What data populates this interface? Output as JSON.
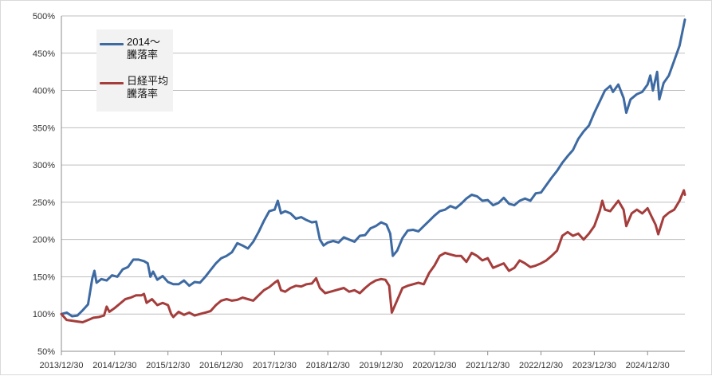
{
  "chart_data": {
    "type": "line",
    "title": "",
    "xlabel": "",
    "ylabel": "",
    "ylim": [
      50,
      500
    ],
    "y_ticks": [
      "50%",
      "100%",
      "150%",
      "200%",
      "250%",
      "300%",
      "350%",
      "400%",
      "450%",
      "500%"
    ],
    "x_ticks": [
      "2013/12/30",
      "2014/12/30",
      "2015/12/30",
      "2016/12/30",
      "2017/12/30",
      "2018/12/30",
      "2019/12/30",
      "2020/12/30",
      "2021/12/30",
      "2022/12/30",
      "2023/12/30",
      "2024/12/30"
    ],
    "x_range": [
      2014.0,
      2025.7
    ],
    "grid": "horizontal",
    "legend_position": "top-left",
    "series": [
      {
        "name": "2014～\n騰落率",
        "color": "#3d6aa2",
        "points": [
          [
            2014.0,
            100
          ],
          [
            2014.1,
            102
          ],
          [
            2014.2,
            97
          ],
          [
            2014.3,
            98
          ],
          [
            2014.4,
            105
          ],
          [
            2014.5,
            113
          ],
          [
            2014.58,
            148
          ],
          [
            2014.62,
            158
          ],
          [
            2014.66,
            142
          ],
          [
            2014.75,
            147
          ],
          [
            2014.85,
            145
          ],
          [
            2014.95,
            152
          ],
          [
            2015.05,
            150
          ],
          [
            2015.15,
            160
          ],
          [
            2015.25,
            163
          ],
          [
            2015.35,
            173
          ],
          [
            2015.45,
            173
          ],
          [
            2015.55,
            171
          ],
          [
            2015.62,
            168
          ],
          [
            2015.67,
            150
          ],
          [
            2015.72,
            157
          ],
          [
            2015.8,
            146
          ],
          [
            2015.9,
            151
          ],
          [
            2016.0,
            143
          ],
          [
            2016.1,
            140
          ],
          [
            2016.2,
            140
          ],
          [
            2016.3,
            145
          ],
          [
            2016.4,
            138
          ],
          [
            2016.5,
            143
          ],
          [
            2016.6,
            142
          ],
          [
            2016.7,
            150
          ],
          [
            2016.8,
            159
          ],
          [
            2016.9,
            168
          ],
          [
            2017.0,
            175
          ],
          [
            2017.1,
            178
          ],
          [
            2017.2,
            183
          ],
          [
            2017.3,
            195
          ],
          [
            2017.4,
            192
          ],
          [
            2017.5,
            188
          ],
          [
            2017.6,
            197
          ],
          [
            2017.7,
            210
          ],
          [
            2017.8,
            225
          ],
          [
            2017.9,
            238
          ],
          [
            2018.0,
            240
          ],
          [
            2018.06,
            252
          ],
          [
            2018.12,
            235
          ],
          [
            2018.2,
            238
          ],
          [
            2018.3,
            235
          ],
          [
            2018.4,
            228
          ],
          [
            2018.5,
            230
          ],
          [
            2018.6,
            226
          ],
          [
            2018.7,
            223
          ],
          [
            2018.78,
            224
          ],
          [
            2018.85,
            200
          ],
          [
            2018.92,
            192
          ],
          [
            2019.0,
            196
          ],
          [
            2019.1,
            198
          ],
          [
            2019.2,
            196
          ],
          [
            2019.3,
            203
          ],
          [
            2019.4,
            200
          ],
          [
            2019.5,
            197
          ],
          [
            2019.6,
            205
          ],
          [
            2019.7,
            206
          ],
          [
            2019.8,
            215
          ],
          [
            2019.9,
            218
          ],
          [
            2020.0,
            223
          ],
          [
            2020.1,
            220
          ],
          [
            2020.17,
            208
          ],
          [
            2020.22,
            178
          ],
          [
            2020.3,
            185
          ],
          [
            2020.4,
            202
          ],
          [
            2020.5,
            212
          ],
          [
            2020.6,
            213
          ],
          [
            2020.7,
            211
          ],
          [
            2020.8,
            218
          ],
          [
            2020.9,
            225
          ],
          [
            2021.0,
            232
          ],
          [
            2021.1,
            238
          ],
          [
            2021.2,
            240
          ],
          [
            2021.3,
            245
          ],
          [
            2021.4,
            242
          ],
          [
            2021.5,
            248
          ],
          [
            2021.6,
            255
          ],
          [
            2021.7,
            260
          ],
          [
            2021.8,
            258
          ],
          [
            2021.9,
            252
          ],
          [
            2022.0,
            253
          ],
          [
            2022.1,
            246
          ],
          [
            2022.2,
            249
          ],
          [
            2022.3,
            256
          ],
          [
            2022.4,
            248
          ],
          [
            2022.5,
            246
          ],
          [
            2022.6,
            252
          ],
          [
            2022.7,
            255
          ],
          [
            2022.8,
            252
          ],
          [
            2022.9,
            262
          ],
          [
            2023.0,
            263
          ],
          [
            2023.1,
            273
          ],
          [
            2023.2,
            283
          ],
          [
            2023.3,
            292
          ],
          [
            2023.4,
            303
          ],
          [
            2023.5,
            312
          ],
          [
            2023.6,
            320
          ],
          [
            2023.7,
            335
          ],
          [
            2023.8,
            345
          ],
          [
            2023.9,
            353
          ],
          [
            2024.0,
            370
          ],
          [
            2024.1,
            385
          ],
          [
            2024.2,
            400
          ],
          [
            2024.3,
            406
          ],
          [
            2024.35,
            398
          ],
          [
            2024.45,
            408
          ],
          [
            2024.55,
            390
          ],
          [
            2024.6,
            370
          ],
          [
            2024.68,
            388
          ],
          [
            2024.8,
            395
          ],
          [
            2024.9,
            398
          ],
          [
            2025.0,
            408
          ],
          [
            2025.05,
            420
          ],
          [
            2025.1,
            400
          ],
          [
            2025.18,
            425
          ],
          [
            2025.22,
            388
          ],
          [
            2025.3,
            410
          ],
          [
            2025.4,
            420
          ],
          [
            2025.5,
            440
          ],
          [
            2025.6,
            460
          ],
          [
            2025.7,
            495
          ]
        ]
      },
      {
        "name": "日経平均\n騰落率",
        "color": "#a43d3b",
        "points": [
          [
            2014.0,
            100
          ],
          [
            2014.1,
            92
          ],
          [
            2014.2,
            91
          ],
          [
            2014.3,
            90
          ],
          [
            2014.4,
            89
          ],
          [
            2014.5,
            92
          ],
          [
            2014.6,
            95
          ],
          [
            2014.7,
            96
          ],
          [
            2014.8,
            98
          ],
          [
            2014.85,
            110
          ],
          [
            2014.9,
            103
          ],
          [
            2015.0,
            108
          ],
          [
            2015.1,
            114
          ],
          [
            2015.2,
            120
          ],
          [
            2015.3,
            122
          ],
          [
            2015.4,
            125
          ],
          [
            2015.5,
            125
          ],
          [
            2015.55,
            127
          ],
          [
            2015.6,
            115
          ],
          [
            2015.7,
            120
          ],
          [
            2015.8,
            112
          ],
          [
            2015.9,
            115
          ],
          [
            2016.0,
            112
          ],
          [
            2016.06,
            100
          ],
          [
            2016.1,
            96
          ],
          [
            2016.2,
            103
          ],
          [
            2016.3,
            99
          ],
          [
            2016.4,
            102
          ],
          [
            2016.5,
            98
          ],
          [
            2016.6,
            100
          ],
          [
            2016.7,
            102
          ],
          [
            2016.8,
            104
          ],
          [
            2016.9,
            112
          ],
          [
            2017.0,
            118
          ],
          [
            2017.1,
            120
          ],
          [
            2017.2,
            118
          ],
          [
            2017.3,
            119
          ],
          [
            2017.4,
            122
          ],
          [
            2017.5,
            120
          ],
          [
            2017.6,
            118
          ],
          [
            2017.7,
            125
          ],
          [
            2017.8,
            132
          ],
          [
            2017.9,
            136
          ],
          [
            2018.0,
            142
          ],
          [
            2018.06,
            145
          ],
          [
            2018.12,
            132
          ],
          [
            2018.2,
            130
          ],
          [
            2018.3,
            135
          ],
          [
            2018.4,
            138
          ],
          [
            2018.5,
            137
          ],
          [
            2018.6,
            140
          ],
          [
            2018.7,
            141
          ],
          [
            2018.78,
            148
          ],
          [
            2018.85,
            135
          ],
          [
            2018.95,
            128
          ],
          [
            2019.05,
            130
          ],
          [
            2019.15,
            132
          ],
          [
            2019.3,
            135
          ],
          [
            2019.4,
            130
          ],
          [
            2019.5,
            132
          ],
          [
            2019.6,
            128
          ],
          [
            2019.7,
            135
          ],
          [
            2019.8,
            141
          ],
          [
            2019.9,
            145
          ],
          [
            2020.0,
            147
          ],
          [
            2020.08,
            146
          ],
          [
            2020.15,
            138
          ],
          [
            2020.2,
            102
          ],
          [
            2020.28,
            115
          ],
          [
            2020.4,
            135
          ],
          [
            2020.5,
            138
          ],
          [
            2020.6,
            140
          ],
          [
            2020.7,
            142
          ],
          [
            2020.8,
            140
          ],
          [
            2020.9,
            155
          ],
          [
            2021.0,
            165
          ],
          [
            2021.1,
            178
          ],
          [
            2021.2,
            182
          ],
          [
            2021.3,
            180
          ],
          [
            2021.4,
            178
          ],
          [
            2021.5,
            178
          ],
          [
            2021.6,
            170
          ],
          [
            2021.7,
            182
          ],
          [
            2021.8,
            178
          ],
          [
            2021.9,
            172
          ],
          [
            2022.0,
            175
          ],
          [
            2022.1,
            162
          ],
          [
            2022.2,
            165
          ],
          [
            2022.3,
            168
          ],
          [
            2022.4,
            158
          ],
          [
            2022.5,
            162
          ],
          [
            2022.6,
            172
          ],
          [
            2022.7,
            168
          ],
          [
            2022.8,
            163
          ],
          [
            2022.9,
            165
          ],
          [
            2023.0,
            168
          ],
          [
            2023.1,
            172
          ],
          [
            2023.2,
            178
          ],
          [
            2023.3,
            185
          ],
          [
            2023.4,
            205
          ],
          [
            2023.5,
            210
          ],
          [
            2023.6,
            205
          ],
          [
            2023.7,
            208
          ],
          [
            2023.8,
            200
          ],
          [
            2023.9,
            208
          ],
          [
            2024.0,
            218
          ],
          [
            2024.1,
            238
          ],
          [
            2024.15,
            252
          ],
          [
            2024.2,
            240
          ],
          [
            2024.3,
            238
          ],
          [
            2024.45,
            252
          ],
          [
            2024.55,
            240
          ],
          [
            2024.6,
            218
          ],
          [
            2024.7,
            235
          ],
          [
            2024.8,
            240
          ],
          [
            2024.9,
            235
          ],
          [
            2025.0,
            242
          ],
          [
            2025.08,
            230
          ],
          [
            2025.15,
            220
          ],
          [
            2025.2,
            207
          ],
          [
            2025.3,
            230
          ],
          [
            2025.4,
            236
          ],
          [
            2025.5,
            240
          ],
          [
            2025.6,
            252
          ],
          [
            2025.68,
            266
          ],
          [
            2025.7,
            260
          ]
        ]
      }
    ]
  }
}
